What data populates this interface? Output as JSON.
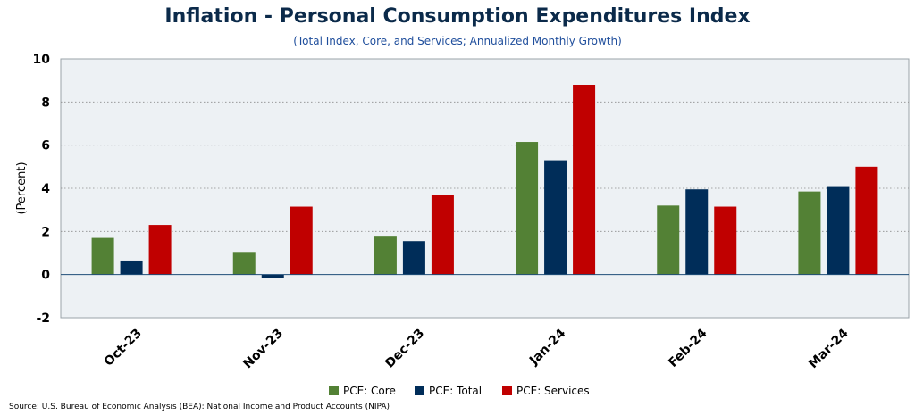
{
  "title": "Inflation - Personal Consumption Expenditures Index",
  "subtitle": "(Total Index, Core, and Services; Annualized Monthly Growth)",
  "source": "Source: U.S. Bureau of Economic Analysis (BEA): National Income and Product Accounts (NIPA)",
  "chart_data": {
    "type": "bar",
    "categories": [
      "Oct-23",
      "Nov-23",
      "Dec-23",
      "Jan-24",
      "Feb-24",
      "Mar-24"
    ],
    "series": [
      {
        "name": "PCE: Core",
        "color": "#538135",
        "values": [
          1.7,
          1.05,
          1.8,
          6.15,
          3.2,
          3.85
        ]
      },
      {
        "name": "PCE: Total",
        "color": "#002d59",
        "values": [
          0.65,
          -0.15,
          1.55,
          5.3,
          3.95,
          4.1
        ]
      },
      {
        "name": "PCE: Services",
        "color": "#c00000",
        "values": [
          2.3,
          3.15,
          3.7,
          8.8,
          3.15,
          5.0
        ]
      }
    ],
    "ylabel": "(Percent)",
    "xlabel": "",
    "ylim": [
      -2,
      10
    ],
    "yticks": [
      -2,
      0,
      2,
      4,
      6,
      8,
      10
    ],
    "grid": true,
    "legend": "bottom-center",
    "plot_background": "#edf1f4"
  }
}
